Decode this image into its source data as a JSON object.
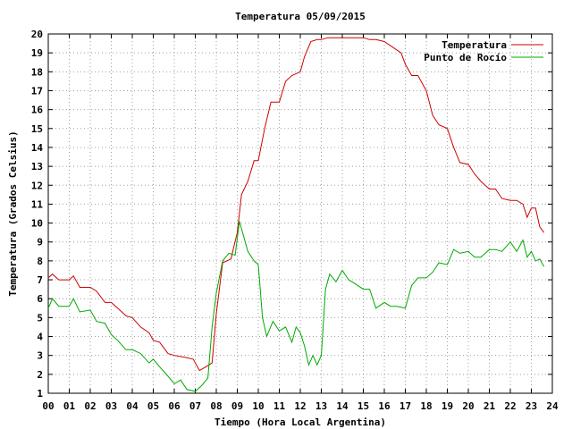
{
  "chart_data": {
    "type": "line",
    "title": "Temperatura 05/09/2015",
    "xlabel": "Tiempo (Hora Local Argentina)",
    "ylabel": "Temperatura (Grados Celsius)",
    "xlim": [
      0,
      24
    ],
    "ylim": [
      1,
      20
    ],
    "x_ticks": [
      "00",
      "01",
      "02",
      "03",
      "04",
      "05",
      "06",
      "07",
      "08",
      "09",
      "10",
      "11",
      "12",
      "13",
      "14",
      "15",
      "16",
      "17",
      "18",
      "19",
      "20",
      "21",
      "22",
      "23",
      "24"
    ],
    "y_ticks": [
      1,
      2,
      3,
      4,
      5,
      6,
      7,
      8,
      9,
      10,
      11,
      12,
      13,
      14,
      15,
      16,
      17,
      18,
      19,
      20
    ],
    "grid": true,
    "legend_position": "top-right",
    "series": [
      {
        "name": "Temperatura",
        "color": "#cc0000",
        "x": [
          0.0,
          0.2,
          0.5,
          1.0,
          1.2,
          1.5,
          2.0,
          2.3,
          2.7,
          3.0,
          3.3,
          3.7,
          4.0,
          4.4,
          4.8,
          5.0,
          5.3,
          5.7,
          6.0,
          6.5,
          6.9,
          7.2,
          7.5,
          7.8,
          8.0,
          8.3,
          8.7,
          9.0,
          9.2,
          9.5,
          9.8,
          10.0,
          10.3,
          10.6,
          11.0,
          11.3,
          11.6,
          12.0,
          12.2,
          12.5,
          12.8,
          13.0,
          13.3,
          13.6,
          14.0,
          14.3,
          14.6,
          15.0,
          15.3,
          15.6,
          16.0,
          16.4,
          16.8,
          17.0,
          17.3,
          17.6,
          18.0,
          18.3,
          18.6,
          19.0,
          19.3,
          19.6,
          20.0,
          20.3,
          20.6,
          21.0,
          21.3,
          21.6,
          22.0,
          22.3,
          22.6,
          22.8,
          23.0,
          23.2,
          23.4,
          23.6
        ],
        "values": [
          7.1,
          7.3,
          7.0,
          7.0,
          7.2,
          6.6,
          6.6,
          6.4,
          5.8,
          5.8,
          5.5,
          5.1,
          5.0,
          4.5,
          4.2,
          3.8,
          3.7,
          3.1,
          3.0,
          2.9,
          2.8,
          2.2,
          2.4,
          2.6,
          5.2,
          7.9,
          8.1,
          9.5,
          11.5,
          12.2,
          13.3,
          13.3,
          15.0,
          16.4,
          16.4,
          17.5,
          17.8,
          18.0,
          18.8,
          19.6,
          19.7,
          19.7,
          19.8,
          19.8,
          19.8,
          19.8,
          19.8,
          19.8,
          19.7,
          19.7,
          19.6,
          19.3,
          19.0,
          18.4,
          17.8,
          17.8,
          17.0,
          15.7,
          15.2,
          15.0,
          14.0,
          13.2,
          13.1,
          12.6,
          12.2,
          11.8,
          11.8,
          11.3,
          11.2,
          11.2,
          11.0,
          10.3,
          10.8,
          10.8,
          9.8,
          9.5
        ]
      },
      {
        "name": "Punto de Rocío",
        "color": "#00aa00",
        "x": [
          0.0,
          0.2,
          0.5,
          1.0,
          1.2,
          1.5,
          2.0,
          2.3,
          2.7,
          3.0,
          3.3,
          3.7,
          4.0,
          4.4,
          4.8,
          5.0,
          5.3,
          5.7,
          6.0,
          6.3,
          6.6,
          7.0,
          7.3,
          7.6,
          7.8,
          8.0,
          8.3,
          8.6,
          8.9,
          9.1,
          9.3,
          9.5,
          9.8,
          10.0,
          10.2,
          10.4,
          10.7,
          11.0,
          11.3,
          11.6,
          11.8,
          12.0,
          12.2,
          12.4,
          12.6,
          12.8,
          13.0,
          13.2,
          13.4,
          13.7,
          14.0,
          14.3,
          14.6,
          15.0,
          15.3,
          15.6,
          16.0,
          16.3,
          16.6,
          17.0,
          17.3,
          17.6,
          18.0,
          18.3,
          18.6,
          19.0,
          19.3,
          19.6,
          20.0,
          20.3,
          20.6,
          21.0,
          21.3,
          21.6,
          22.0,
          22.3,
          22.6,
          22.8,
          23.0,
          23.2,
          23.4,
          23.6
        ],
        "values": [
          5.5,
          6.0,
          5.6,
          5.6,
          6.0,
          5.3,
          5.4,
          4.8,
          4.7,
          4.1,
          3.8,
          3.3,
          3.3,
          3.1,
          2.6,
          2.8,
          2.4,
          1.9,
          1.5,
          1.7,
          1.2,
          1.1,
          1.4,
          1.8,
          4.5,
          6.3,
          8.0,
          8.4,
          8.3,
          10.1,
          9.3,
          8.5,
          8.0,
          7.8,
          5.0,
          4.0,
          4.8,
          4.3,
          4.5,
          3.7,
          4.5,
          4.2,
          3.5,
          2.5,
          3.0,
          2.5,
          3.0,
          6.5,
          7.3,
          6.9,
          7.5,
          7.0,
          6.8,
          6.5,
          6.5,
          5.5,
          5.8,
          5.6,
          5.6,
          5.5,
          6.7,
          7.1,
          7.1,
          7.4,
          7.9,
          7.8,
          8.6,
          8.4,
          8.5,
          8.2,
          8.2,
          8.6,
          8.6,
          8.5,
          9.0,
          8.5,
          9.1,
          8.2,
          8.5,
          8.0,
          8.1,
          7.7
        ]
      }
    ]
  }
}
